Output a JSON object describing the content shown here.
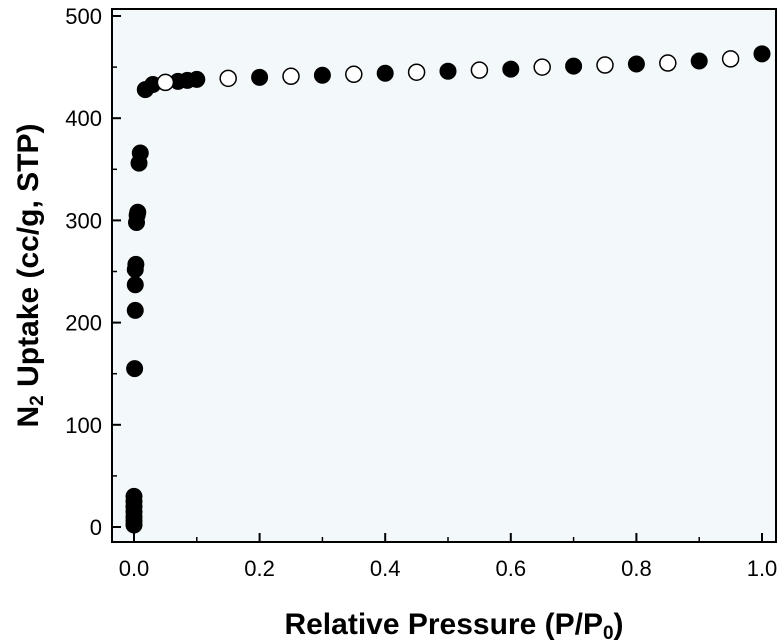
{
  "chart_data": {
    "type": "scatter",
    "xlabel": {
      "prefix": "Relative Pressure (P/P",
      "sub": "0",
      "suffix": ")"
    },
    "ylabel": {
      "prefix": "N",
      "sub": "2",
      "suffix": " Uptake (cc/g, STP)"
    },
    "xlim": [
      0.0,
      1.0
    ],
    "ylim": [
      0,
      500
    ],
    "x_ticks": [
      "0.0",
      "0.2",
      "0.4",
      "0.6",
      "0.8",
      "1.0"
    ],
    "y_ticks": [
      "0",
      "100",
      "200",
      "300",
      "400",
      "500"
    ],
    "grid": false,
    "legend": "none",
    "background_color": "#f3f8fa",
    "series": [
      {
        "marker": "filled-circle",
        "color": "#000000",
        "points": [
          [
            0.0,
            2
          ],
          [
            0.0,
            6
          ],
          [
            0.0,
            10
          ],
          [
            0.0,
            15
          ],
          [
            0.0,
            20
          ],
          [
            0.0,
            25
          ],
          [
            0.0,
            30
          ],
          [
            0.001,
            155
          ],
          [
            0.002,
            212
          ],
          [
            0.002,
            237
          ],
          [
            0.002,
            252
          ],
          [
            0.003,
            257
          ],
          [
            0.004,
            298
          ],
          [
            0.005,
            305
          ],
          [
            0.006,
            308
          ],
          [
            0.008,
            356
          ],
          [
            0.01,
            366
          ],
          [
            0.018,
            428
          ],
          [
            0.03,
            433
          ],
          [
            0.05,
            435
          ],
          [
            0.07,
            436
          ],
          [
            0.085,
            437
          ],
          [
            0.1,
            438
          ],
          [
            0.2,
            440
          ],
          [
            0.3,
            442
          ],
          [
            0.4,
            444
          ],
          [
            0.5,
            446
          ],
          [
            0.6,
            448
          ],
          [
            0.7,
            451
          ],
          [
            0.8,
            453
          ],
          [
            0.9,
            456
          ],
          [
            1.0,
            463
          ]
        ]
      },
      {
        "marker": "open-circle",
        "color": "#000000",
        "points": [
          [
            0.05,
            435
          ],
          [
            0.15,
            439
          ],
          [
            0.25,
            441
          ],
          [
            0.35,
            443
          ],
          [
            0.45,
            445
          ],
          [
            0.55,
            447
          ],
          [
            0.65,
            450
          ],
          [
            0.75,
            452
          ],
          [
            0.85,
            454
          ],
          [
            0.95,
            458
          ]
        ]
      }
    ]
  }
}
